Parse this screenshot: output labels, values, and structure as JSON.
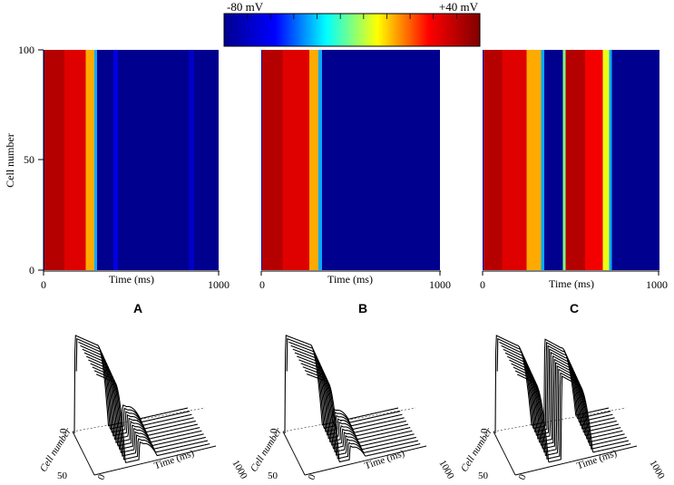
{
  "colorbar": {
    "min_label": "-80 mV",
    "max_label": "+40 mV",
    "min_mV": -80,
    "max_mV": 40,
    "colormap": "jet",
    "colors": [
      "#00008f",
      "#0000ff",
      "#00ffff",
      "#ffff00",
      "#ff0000",
      "#800000"
    ]
  },
  "chart_data": [
    {
      "type": "heatmap",
      "panel": "A",
      "xlabel": "Time (ms)",
      "ylabel": "Cell number",
      "xlim": [
        0,
        1000
      ],
      "ylim": [
        0,
        100
      ],
      "xticks": [
        "0",
        "1000"
      ],
      "yticks": [
        "0",
        "50",
        "100"
      ],
      "bands": [
        {
          "t0": 0,
          "t1": 5,
          "mV": -70
        },
        {
          "t0": 5,
          "t1": 120,
          "mV": 30
        },
        {
          "t0": 120,
          "t1": 240,
          "mV": 22
        },
        {
          "t0": 240,
          "t1": 290,
          "mV": 0
        },
        {
          "t0": 290,
          "t1": 305,
          "mV": -40
        },
        {
          "t0": 305,
          "t1": 400,
          "mV": -82
        },
        {
          "t0": 400,
          "t1": 425,
          "mV": -62
        },
        {
          "t0": 425,
          "t1": 830,
          "mV": -82
        },
        {
          "t0": 830,
          "t1": 860,
          "mV": -68
        },
        {
          "t0": 860,
          "t1": 1000,
          "mV": -82
        }
      ]
    },
    {
      "type": "heatmap",
      "panel": "B",
      "xlabel": "Time (ms)",
      "xlim": [
        0,
        1000
      ],
      "ylim": [
        0,
        100
      ],
      "xticks": [
        "0",
        "1000"
      ],
      "bands": [
        {
          "t0": 0,
          "t1": 5,
          "mV": -70
        },
        {
          "t0": 5,
          "t1": 120,
          "mV": 30
        },
        {
          "t0": 120,
          "t1": 270,
          "mV": 22
        },
        {
          "t0": 270,
          "t1": 320,
          "mV": 0
        },
        {
          "t0": 320,
          "t1": 340,
          "mV": -40
        },
        {
          "t0": 340,
          "t1": 1000,
          "mV": -82
        }
      ]
    },
    {
      "type": "heatmap",
      "panel": "C",
      "xlabel": "Time (ms)",
      "xlim": [
        0,
        1000
      ],
      "ylim": [
        0,
        100
      ],
      "xticks": [
        "0",
        "1000"
      ],
      "bands": [
        {
          "t0": 0,
          "t1": 5,
          "mV": -70
        },
        {
          "t0": 5,
          "t1": 110,
          "mV": 30
        },
        {
          "t0": 110,
          "t1": 250,
          "mV": 22
        },
        {
          "t0": 250,
          "t1": 330,
          "mV": 0
        },
        {
          "t0": 330,
          "t1": 350,
          "mV": -40
        },
        {
          "t0": 350,
          "t1": 455,
          "mV": -82
        },
        {
          "t0": 455,
          "t1": 470,
          "mV": -20
        },
        {
          "t0": 470,
          "t1": 580,
          "mV": 30
        },
        {
          "t0": 580,
          "t1": 680,
          "mV": 18
        },
        {
          "t0": 680,
          "t1": 715,
          "mV": -10
        },
        {
          "t0": 715,
          "t1": 730,
          "mV": -40
        },
        {
          "t0": 730,
          "t1": 1000,
          "mV": -82
        }
      ]
    }
  ],
  "panel_labels": [
    "A",
    "B",
    "C"
  ],
  "waterfall": {
    "type": "line",
    "cell_axis_label": "Cell number",
    "time_axis_label": "Time (ms)",
    "cell_ticks": [
      "0",
      "50"
    ],
    "time_ticks": [
      "0",
      "1000"
    ],
    "traces_per_panel": 12,
    "panels": [
      {
        "panel": "A",
        "beats": [
          {
            "upstroke_ms": 0,
            "plateau_ms": 200,
            "duration_ms": 300,
            "amplitude": 1.0
          },
          {
            "upstroke_ms": 420,
            "plateau_ms": 40,
            "duration_ms": 160,
            "amplitude": 0.18
          }
        ]
      },
      {
        "panel": "B",
        "beats": [
          {
            "upstroke_ms": 0,
            "plateau_ms": 220,
            "duration_ms": 330,
            "amplitude": 1.0
          },
          {
            "upstroke_ms": 420,
            "plateau_ms": 30,
            "duration_ms": 140,
            "amplitude": 0.14
          }
        ]
      },
      {
        "panel": "C",
        "beats": [
          {
            "upstroke_ms": 0,
            "plateau_ms": 190,
            "duration_ms": 320,
            "amplitude": 1.0
          },
          {
            "upstroke_ms": 430,
            "plateau_ms": 150,
            "duration_ms": 280,
            "amplitude": 0.85
          }
        ]
      }
    ]
  }
}
